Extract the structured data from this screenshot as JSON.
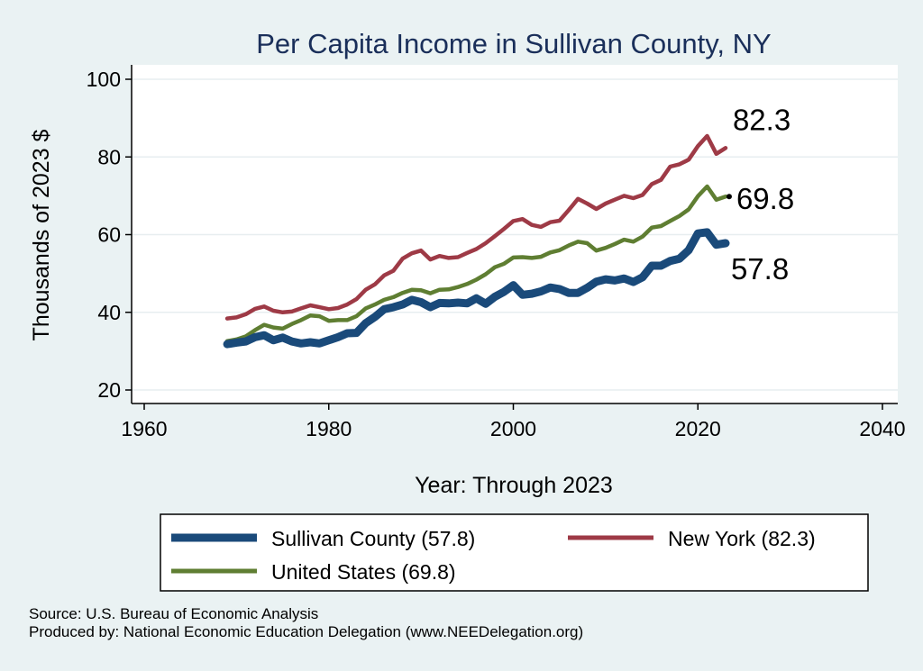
{
  "chart_data": {
    "type": "line",
    "title": "Per Capita Income in Sullivan County, NY",
    "xlabel": "Year: Through 2023",
    "ylabel": "Thousands of 2023 $",
    "xlim": [
      1960,
      2040
    ],
    "ylim": [
      20,
      100
    ],
    "xticks": [
      1960,
      1980,
      2000,
      2020,
      2040
    ],
    "yticks": [
      20,
      40,
      60,
      80,
      100
    ],
    "grid": true,
    "legend_position": "bottom",
    "x": [
      1969,
      1970,
      1971,
      1972,
      1973,
      1974,
      1975,
      1976,
      1977,
      1978,
      1979,
      1980,
      1981,
      1982,
      1983,
      1984,
      1985,
      1986,
      1987,
      1988,
      1989,
      1990,
      1991,
      1992,
      1993,
      1994,
      1995,
      1996,
      1997,
      1998,
      1999,
      2000,
      2001,
      2002,
      2003,
      2004,
      2005,
      2006,
      2007,
      2008,
      2009,
      2010,
      2011,
      2012,
      2013,
      2014,
      2015,
      2016,
      2017,
      2018,
      2019,
      2020,
      2021,
      2022,
      2023
    ],
    "series": [
      {
        "name": "Sullivan County (57.8)",
        "color": "#1a4a7a",
        "end_label": "57.8",
        "values": [
          31.8,
          32.2,
          32.5,
          33.6,
          34.1,
          32.8,
          33.5,
          32.5,
          32.0,
          32.3,
          32.0,
          32.8,
          33.6,
          34.6,
          34.7,
          37.2,
          38.8,
          40.8,
          41.3,
          42.0,
          43.2,
          42.6,
          41.3,
          42.4,
          42.3,
          42.5,
          42.3,
          43.6,
          42.2,
          44.0,
          45.3,
          47.0,
          44.5,
          44.8,
          45.4,
          46.4,
          46.0,
          45.0,
          45.0,
          46.3,
          47.9,
          48.5,
          48.2,
          48.7,
          47.8,
          49.0,
          52.0,
          52.0,
          53.2,
          53.8,
          56.0,
          60.3,
          60.6,
          57.4,
          57.8
        ]
      },
      {
        "name": "New York (82.3)",
        "color": "#9e3a46",
        "end_label": "82.3",
        "values": [
          38.4,
          38.7,
          39.5,
          40.9,
          41.5,
          40.4,
          40.0,
          40.2,
          41.0,
          41.8,
          41.3,
          40.8,
          41.1,
          42.0,
          43.4,
          45.8,
          47.2,
          49.5,
          50.7,
          53.8,
          55.2,
          55.9,
          53.6,
          54.5,
          54.0,
          54.2,
          55.3,
          56.3,
          57.8,
          59.6,
          61.5,
          63.5,
          64.0,
          62.5,
          62.0,
          63.2,
          63.6,
          66.3,
          69.2,
          68.0,
          66.6,
          68.0,
          69.0,
          70.0,
          69.4,
          70.2,
          73.0,
          74.1,
          77.5,
          78.1,
          79.3,
          82.8,
          85.4,
          80.8,
          82.3
        ]
      },
      {
        "name": "United States (69.8)",
        "color": "#5f7e32",
        "end_label": "69.8",
        "values": [
          32.6,
          33.0,
          33.8,
          35.4,
          36.8,
          36.1,
          35.8,
          37.0,
          38.0,
          39.2,
          39.0,
          37.8,
          38.0,
          38.0,
          39.0,
          41.0,
          42.0,
          43.2,
          43.9,
          45.0,
          45.8,
          45.7,
          44.9,
          45.8,
          45.9,
          46.5,
          47.3,
          48.4,
          49.8,
          51.6,
          52.5,
          54.1,
          54.2,
          54.0,
          54.3,
          55.4,
          56.0,
          57.2,
          58.2,
          57.8,
          55.9,
          56.6,
          57.6,
          58.7,
          58.2,
          59.5,
          61.8,
          62.2,
          63.5,
          64.8,
          66.5,
          69.9,
          72.4,
          69.0,
          69.8
        ]
      }
    ]
  },
  "legend": {
    "items": [
      {
        "label": "Sullivan County (57.8)",
        "color": "#1a4a7a"
      },
      {
        "label": "New York (82.3)",
        "color": "#9e3a46"
      },
      {
        "label": "United States (69.8)",
        "color": "#5f7e32"
      }
    ]
  },
  "footer": {
    "source": "Source: U.S. Bureau of Economic Analysis",
    "produced_by": "Produced by: National Economic Education Delegation (www.NEEDelegation.org)"
  }
}
